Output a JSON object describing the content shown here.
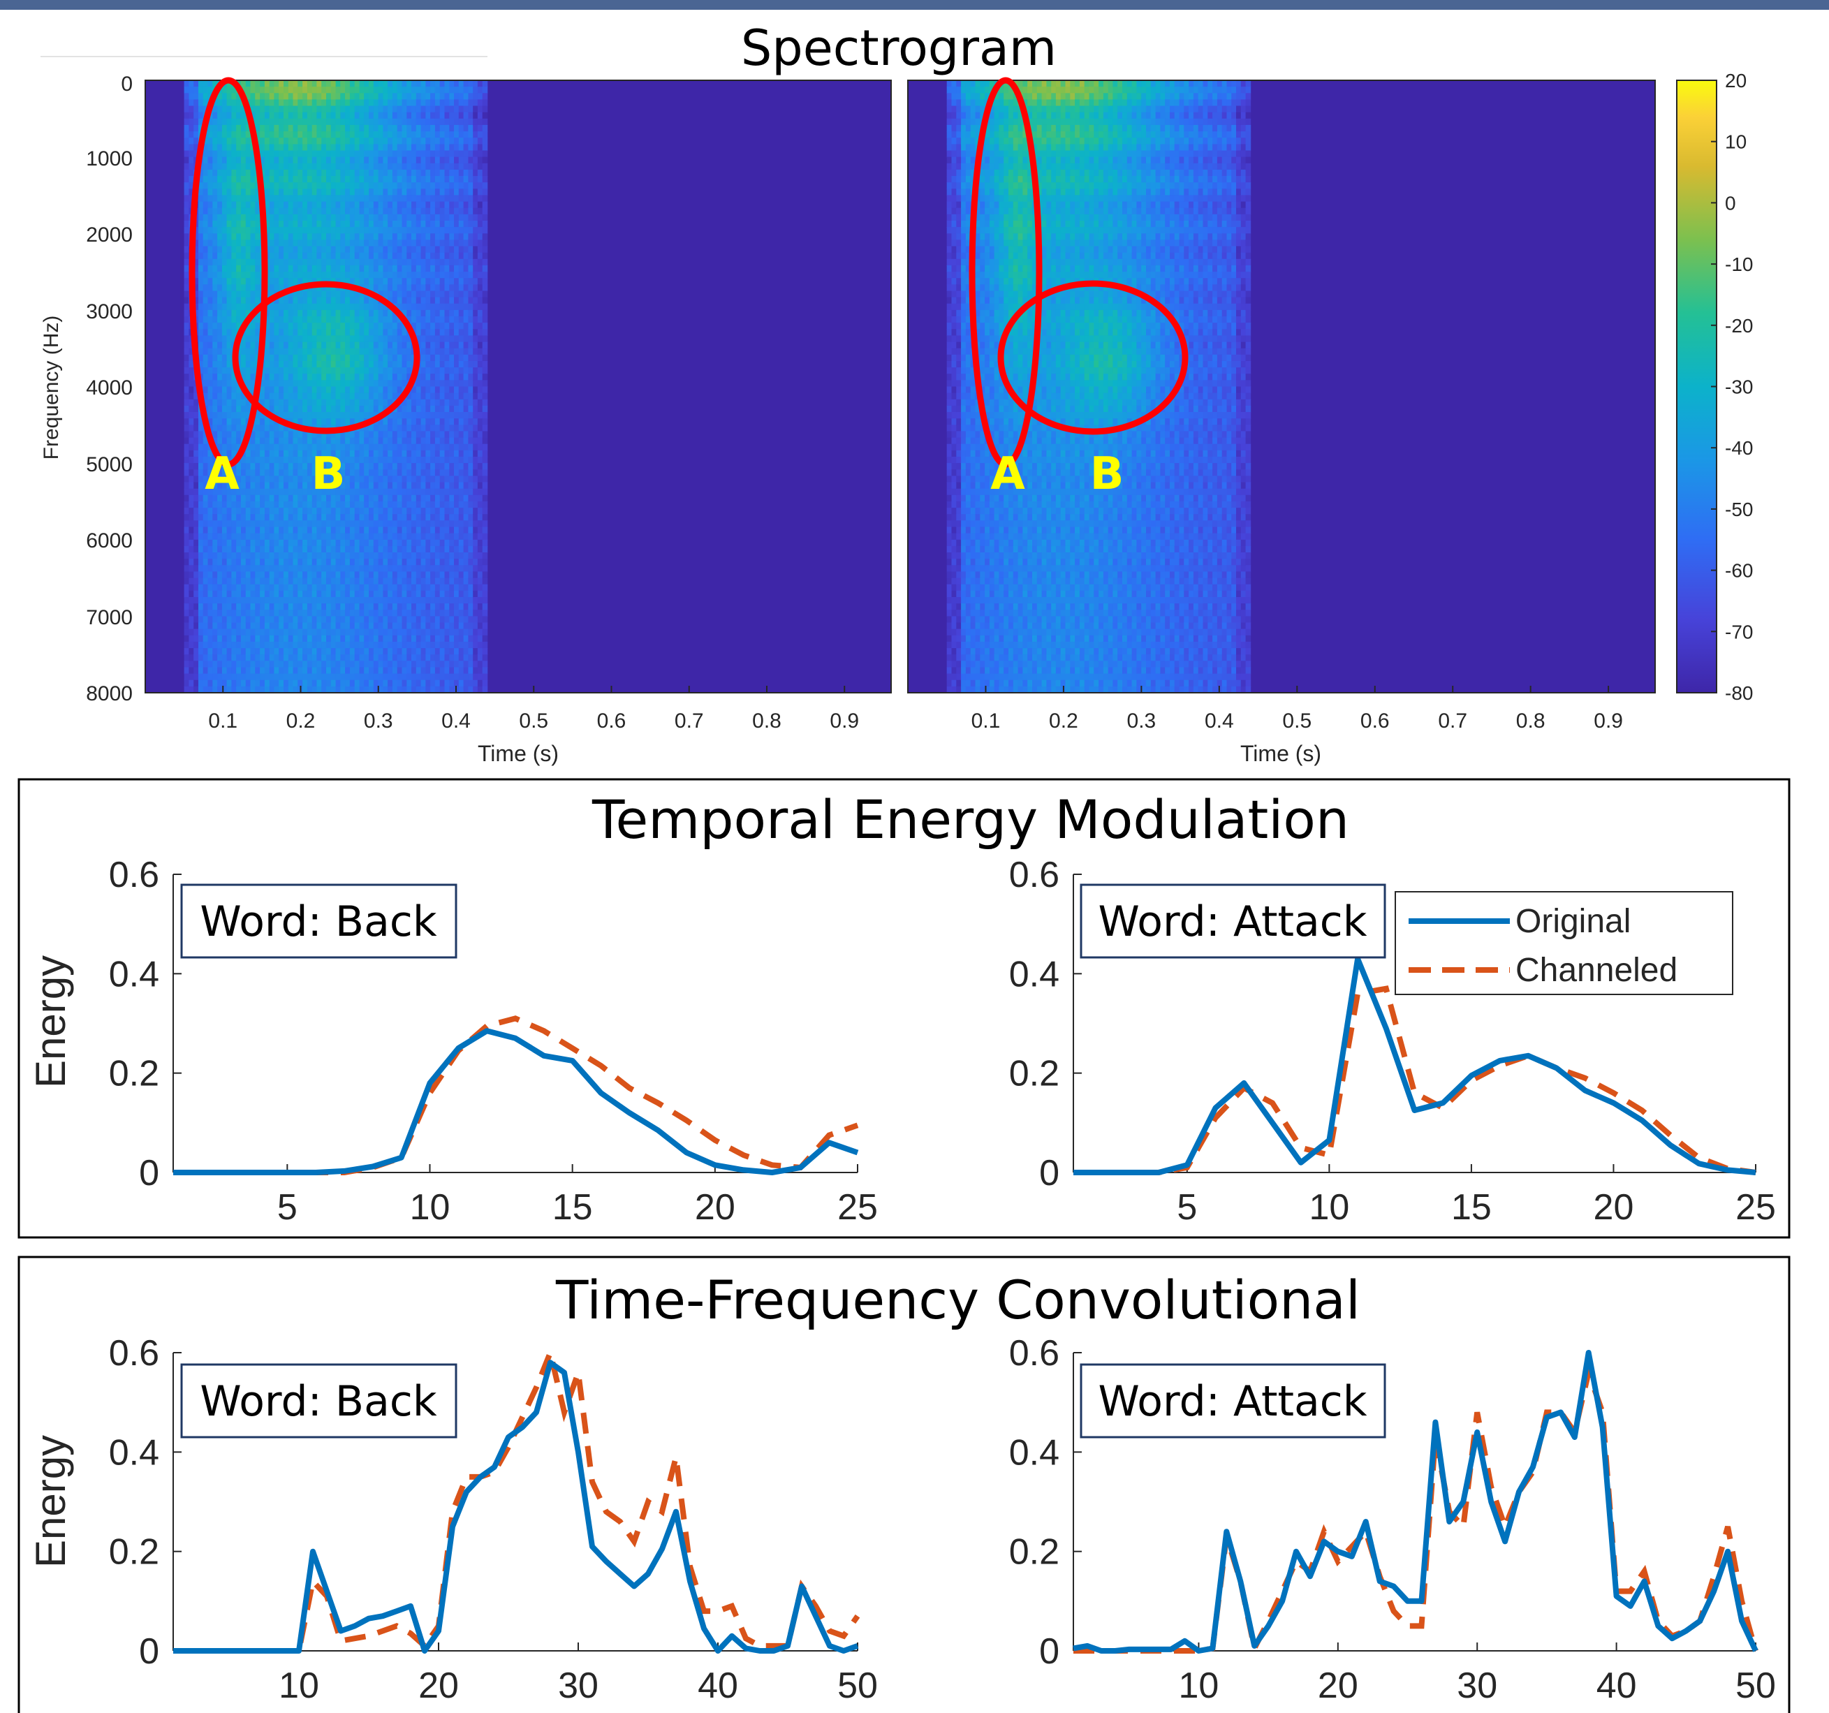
{
  "colors": {
    "line_original": "#0072bd",
    "line_channeled": "#d95319",
    "annotation_ellipse": "#ff0000",
    "annotation_letter": "#ffff00",
    "spectrogram_background": "#3e26a8"
  },
  "spectrogram_section": {
    "title": "Spectrogram",
    "ylabel": "Frequency (Hz)",
    "xlabel": "Time (s)",
    "y_ticks": [
      "0",
      "1000",
      "2000",
      "3000",
      "4000",
      "5000",
      "6000",
      "7000",
      "8000"
    ],
    "x_ticks": [
      "0.1",
      "0.2",
      "0.3",
      "0.4",
      "0.5",
      "0.6",
      "0.7",
      "0.8",
      "0.9"
    ],
    "colorbar_ticks": [
      "20",
      "10",
      "0",
      "-10",
      "-20",
      "-30",
      "-40",
      "-50",
      "-60",
      "-70",
      "-80"
    ],
    "annotations": [
      "A",
      "B"
    ]
  },
  "temporal_section": {
    "title": "Temporal Energy Modulation",
    "ylabel": "Energy",
    "y_ticks": [
      "0",
      "0.2",
      "0.4",
      "0.6"
    ],
    "x_ticks": [
      "5",
      "10",
      "15",
      "20",
      "25"
    ],
    "left_box": "Word: Back",
    "right_box": "Word: Attack",
    "legend": [
      "Original",
      "Channeled"
    ]
  },
  "conv_section": {
    "title": "Time-Frequency Convolutional",
    "ylabel": "Energy",
    "y_ticks": [
      "0",
      "0.2",
      "0.4",
      "0.6"
    ],
    "x_ticks": [
      "10",
      "20",
      "30",
      "40",
      "50"
    ],
    "left_box": "Word: Back",
    "right_box": "Word: Attack"
  },
  "chart_data": [
    {
      "type": "heatmap",
      "title": "Spectrogram",
      "panel": "left",
      "xlabel": "Time (s)",
      "ylabel": "Frequency (Hz)",
      "xlim": [
        0,
        0.96
      ],
      "ylim": [
        8000,
        0
      ],
      "colorbar_range": [
        -80,
        20
      ],
      "signal_time_range": [
        0.05,
        0.44
      ],
      "annotations": [
        {
          "label": "A",
          "time_center": 0.12,
          "freq_center": 2300
        },
        {
          "label": "B",
          "time_center": 0.25,
          "freq_center": 3600
        }
      ]
    },
    {
      "type": "heatmap",
      "title": "",
      "panel": "right",
      "xlabel": "Time (s)",
      "xlim": [
        0,
        0.96
      ],
      "ylim": [
        8000,
        0
      ],
      "colorbar_range": [
        -80,
        20
      ],
      "signal_time_range": [
        0.05,
        0.44
      ],
      "annotations": [
        {
          "label": "A",
          "time_center": 0.14,
          "freq_center": 2300
        },
        {
          "label": "B",
          "time_center": 0.26,
          "freq_center": 3650
        }
      ]
    },
    {
      "type": "line",
      "title": "Temporal Energy Modulation",
      "subplot": "Word: Back",
      "ylabel": "Energy",
      "xlim": [
        1,
        25
      ],
      "ylim": [
        0,
        0.6
      ],
      "x": [
        1,
        2,
        3,
        4,
        5,
        6,
        7,
        8,
        9,
        10,
        11,
        12,
        13,
        14,
        15,
        16,
        17,
        18,
        19,
        20,
        21,
        22,
        23,
        24,
        25
      ],
      "series": [
        {
          "name": "Original",
          "values": [
            0,
            0,
            0,
            0,
            0,
            0,
            0.003,
            0.012,
            0.03,
            0.18,
            0.25,
            0.285,
            0.27,
            0.235,
            0.225,
            0.16,
            0.12,
            0.085,
            0.04,
            0.015,
            0.005,
            0,
            0.01,
            0.06,
            0.04
          ]
        },
        {
          "name": "Channeled",
          "values": [
            0,
            0,
            0,
            0,
            0,
            0,
            0,
            0.01,
            0.03,
            0.16,
            0.245,
            0.295,
            0.31,
            0.285,
            0.25,
            0.215,
            0.17,
            0.14,
            0.105,
            0.065,
            0.035,
            0.015,
            0.01,
            0.075,
            0.095
          ]
        }
      ]
    },
    {
      "type": "line",
      "title": "",
      "subplot": "Word: Attack",
      "ylabel": "",
      "xlim": [
        1,
        25
      ],
      "ylim": [
        0,
        0.6
      ],
      "x": [
        1,
        2,
        3,
        4,
        5,
        6,
        7,
        8,
        9,
        10,
        11,
        12,
        13,
        14,
        15,
        16,
        17,
        18,
        19,
        20,
        21,
        22,
        23,
        24,
        25
      ],
      "series": [
        {
          "name": "Original",
          "values": [
            0,
            0,
            0,
            0,
            0.015,
            0.13,
            0.18,
            0.1,
            0.02,
            0.065,
            0.43,
            0.29,
            0.125,
            0.14,
            0.195,
            0.225,
            0.235,
            0.21,
            0.165,
            0.14,
            0.105,
            0.055,
            0.018,
            0.005,
            0
          ]
        },
        {
          "name": "Channeled",
          "values": [
            0,
            0,
            0,
            0,
            0.01,
            0.11,
            0.17,
            0.14,
            0.05,
            0.035,
            0.36,
            0.37,
            0.16,
            0.13,
            0.185,
            0.215,
            0.235,
            0.21,
            0.19,
            0.16,
            0.125,
            0.075,
            0.03,
            0.008,
            0
          ]
        }
      ]
    },
    {
      "type": "line",
      "title": "Time-Frequency Convolutional",
      "subplot": "Word: Back",
      "ylabel": "Energy",
      "xlim": [
        1,
        50
      ],
      "ylim": [
        0,
        0.6
      ],
      "x": [
        1,
        2,
        3,
        4,
        5,
        6,
        7,
        8,
        9,
        10,
        11,
        12,
        13,
        14,
        15,
        16,
        17,
        18,
        19,
        20,
        21,
        22,
        23,
        24,
        25,
        26,
        27,
        28,
        29,
        30,
        31,
        32,
        33,
        34,
        35,
        36,
        37,
        38,
        39,
        40,
        41,
        42,
        43,
        44,
        45,
        46,
        47,
        48,
        49,
        50
      ],
      "series": [
        {
          "name": "Original",
          "values": [
            0,
            0,
            0,
            0,
            0,
            0,
            0,
            0,
            0,
            0,
            0.2,
            0.12,
            0.04,
            0.05,
            0.065,
            0.07,
            0.08,
            0.09,
            0,
            0.04,
            0.25,
            0.32,
            0.35,
            0.37,
            0.43,
            0.45,
            0.48,
            0.58,
            0.56,
            0.4,
            0.21,
            0.18,
            0.155,
            0.13,
            0.155,
            0.205,
            0.28,
            0.14,
            0.045,
            0,
            0.03,
            0.005,
            0,
            0,
            0.01,
            0.13,
            0.07,
            0.01,
            0,
            0.01
          ]
        },
        {
          "name": "Channeled",
          "values": [
            0,
            0,
            0,
            0,
            0,
            0,
            0,
            0,
            0,
            0,
            0.14,
            0.11,
            0.02,
            0.025,
            0.03,
            0.04,
            0.05,
            0.035,
            0.01,
            0.05,
            0.28,
            0.35,
            0.35,
            0.36,
            0.41,
            0.47,
            0.53,
            0.6,
            0.48,
            0.56,
            0.34,
            0.28,
            0.26,
            0.22,
            0.3,
            0.28,
            0.39,
            0.17,
            0.08,
            0.08,
            0.09,
            0.025,
            0.01,
            0.01,
            0.01,
            0.13,
            0.09,
            0.04,
            0.03,
            0.07
          ]
        }
      ]
    },
    {
      "type": "line",
      "title": "",
      "subplot": "Word: Attack",
      "ylabel": "",
      "xlim": [
        1,
        50
      ],
      "ylim": [
        0,
        0.6
      ],
      "x": [
        1,
        2,
        3,
        4,
        5,
        6,
        7,
        8,
        9,
        10,
        11,
        12,
        13,
        14,
        15,
        16,
        17,
        18,
        19,
        20,
        21,
        22,
        23,
        24,
        25,
        26,
        27,
        28,
        29,
        30,
        31,
        32,
        33,
        34,
        35,
        36,
        37,
        38,
        39,
        40,
        41,
        42,
        43,
        44,
        45,
        46,
        47,
        48,
        49,
        50
      ],
      "series": [
        {
          "name": "Original",
          "values": [
            0.005,
            0.01,
            0,
            0,
            0.003,
            0.003,
            0.003,
            0.003,
            0.02,
            0,
            0.005,
            0.24,
            0.14,
            0.01,
            0.05,
            0.1,
            0.2,
            0.15,
            0.22,
            0.2,
            0.19,
            0.26,
            0.14,
            0.13,
            0.1,
            0.1,
            0.46,
            0.26,
            0.3,
            0.44,
            0.3,
            0.22,
            0.32,
            0.37,
            0.47,
            0.48,
            0.43,
            0.6,
            0.45,
            0.11,
            0.09,
            0.14,
            0.05,
            0.025,
            0.04,
            0.06,
            0.12,
            0.2,
            0.06,
            0
          ]
        },
        {
          "name": "Channeled",
          "values": [
            0,
            0,
            0,
            0,
            0,
            0,
            0,
            0,
            0,
            0,
            0.005,
            0.23,
            0.14,
            0.005,
            0.06,
            0.12,
            0.18,
            0.16,
            0.24,
            0.18,
            0.21,
            0.24,
            0.15,
            0.08,
            0.05,
            0.05,
            0.43,
            0.28,
            0.25,
            0.48,
            0.33,
            0.25,
            0.32,
            0.36,
            0.48,
            0.48,
            0.44,
            0.56,
            0.48,
            0.12,
            0.12,
            0.16,
            0.06,
            0.03,
            0.04,
            0.06,
            0.15,
            0.25,
            0.1,
            0
          ]
        }
      ]
    }
  ]
}
